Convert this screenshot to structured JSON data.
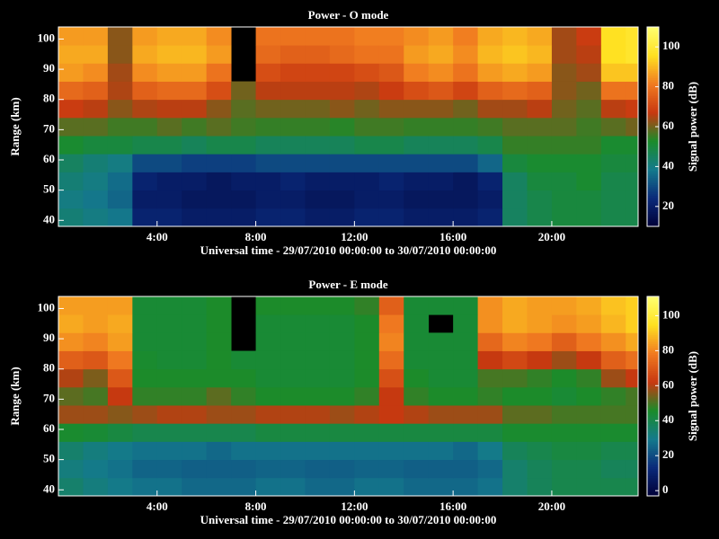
{
  "chart_data": [
    {
      "type": "heatmap",
      "title": "Power - O mode",
      "xlabel": "Universal time - 29/07/2010 00:00:00 to 30/07/2010 00:00:00",
      "ylabel": "Range (km)",
      "colorbar_label": "Signal power (dB)",
      "xbins": [
        0,
        1,
        2,
        3,
        4,
        5,
        6,
        7,
        8,
        9,
        10,
        11,
        12,
        13,
        14,
        15,
        16,
        17,
        18,
        19,
        20,
        21,
        22,
        23,
        23.5
      ],
      "ybins": [
        38,
        44,
        50,
        56,
        62,
        68,
        74,
        80,
        86,
        92,
        98,
        104
      ],
      "xlim": [
        0,
        23.5
      ],
      "ylim": [
        38,
        104
      ],
      "zlim": [
        10,
        110
      ],
      "xticks": [
        {
          "value": 4,
          "label": "4:00"
        },
        {
          "value": 8,
          "label": "8:00"
        },
        {
          "value": 12,
          "label": "12:00"
        },
        {
          "value": 16,
          "label": "16:00"
        },
        {
          "value": 20,
          "label": "20:00"
        }
      ],
      "yticks": [
        40,
        50,
        60,
        70,
        80,
        90,
        100
      ],
      "zticks": [
        20,
        40,
        60,
        80,
        100
      ],
      "colormap": [
        "#000038",
        "#0a2a7a",
        "#147a8c",
        "#1a8c2a",
        "#c83810",
        "#f07a20",
        "#ffe020",
        "#ffff70"
      ],
      "z": [
        [
          42,
          40,
          38,
          22,
          22,
          20,
          20,
          20,
          22,
          22,
          20,
          20,
          22,
          22,
          20,
          20,
          20,
          22,
          45,
          48,
          50,
          50,
          48,
          48
        ],
        [
          40,
          38,
          35,
          20,
          20,
          18,
          18,
          18,
          20,
          20,
          18,
          18,
          20,
          20,
          18,
          18,
          18,
          20,
          45,
          48,
          50,
          50,
          48,
          48
        ],
        [
          42,
          40,
          36,
          22,
          20,
          20,
          18,
          20,
          20,
          22,
          20,
          20,
          20,
          22,
          20,
          20,
          18,
          22,
          45,
          50,
          50,
          52,
          48,
          48
        ],
        [
          45,
          42,
          40,
          30,
          30,
          28,
          28,
          28,
          30,
          30,
          30,
          30,
          30,
          30,
          30,
          30,
          30,
          35,
          50,
          52,
          52,
          52,
          50,
          50
        ],
        [
          52,
          50,
          50,
          48,
          48,
          46,
          48,
          48,
          46,
          46,
          46,
          46,
          48,
          48,
          46,
          46,
          46,
          48,
          55,
          55,
          55,
          55,
          52,
          52
        ],
        [
          58,
          58,
          56,
          56,
          58,
          56,
          58,
          56,
          55,
          55,
          55,
          54,
          56,
          56,
          55,
          55,
          55,
          56,
          58,
          58,
          58,
          56,
          58,
          60
        ],
        [
          68,
          66,
          62,
          65,
          66,
          66,
          62,
          58,
          60,
          60,
          60,
          62,
          60,
          62,
          62,
          62,
          60,
          64,
          64,
          66,
          60,
          58,
          66,
          68
        ],
        [
          78,
          76,
          65,
          76,
          78,
          78,
          72,
          60,
          66,
          66,
          66,
          66,
          65,
          68,
          72,
          74,
          70,
          76,
          78,
          76,
          62,
          60,
          80,
          80
        ],
        [
          86,
          84,
          64,
          84,
          86,
          86,
          80,
          null,
          72,
          70,
          70,
          70,
          72,
          74,
          82,
          84,
          80,
          86,
          88,
          86,
          62,
          64,
          92,
          92
        ],
        [
          88,
          88,
          62,
          88,
          90,
          90,
          86,
          null,
          78,
          76,
          76,
          78,
          80,
          80,
          86,
          88,
          84,
          90,
          92,
          90,
          64,
          66,
          96,
          98
        ],
        [
          86,
          86,
          62,
          86,
          88,
          88,
          84,
          null,
          80,
          80,
          80,
          80,
          82,
          82,
          84,
          86,
          82,
          88,
          90,
          88,
          64,
          68,
          96,
          98
        ]
      ]
    },
    {
      "type": "heatmap",
      "title": "Power - E mode",
      "xlabel": "Universal time - 29/07/2010 00:00:00 to 30/07/2010 00:00:00",
      "ylabel": "Range (km)",
      "colorbar_label": "Signal power (dB)",
      "xbins": [
        0,
        1,
        2,
        3,
        4,
        5,
        6,
        7,
        8,
        9,
        10,
        11,
        12,
        13,
        14,
        15,
        16,
        17,
        18,
        19,
        20,
        21,
        22,
        23,
        23.5
      ],
      "ybins": [
        38,
        44,
        50,
        56,
        62,
        68,
        74,
        80,
        86,
        92,
        98,
        104
      ],
      "xlim": [
        0,
        23.5
      ],
      "ylim": [
        38,
        104
      ],
      "zlim": [
        -3,
        111
      ],
      "xticks": [
        {
          "value": 4,
          "label": "4:00"
        },
        {
          "value": 8,
          "label": "8:00"
        },
        {
          "value": 12,
          "label": "12:00"
        },
        {
          "value": 16,
          "label": "16:00"
        },
        {
          "value": 20,
          "label": "20:00"
        }
      ],
      "yticks": [
        40,
        50,
        60,
        70,
        80,
        90,
        100
      ],
      "zticks": [
        0,
        20,
        40,
        60,
        80,
        100
      ],
      "colormap": [
        "#000038",
        "#0a2a7a",
        "#147a8c",
        "#1a8c2a",
        "#c83810",
        "#f07a20",
        "#ffe020",
        "#ffff70"
      ],
      "z": [
        [
          35,
          32,
          30,
          28,
          28,
          26,
          26,
          26,
          28,
          28,
          26,
          26,
          28,
          28,
          26,
          26,
          26,
          28,
          35,
          38,
          40,
          40,
          40,
          40
        ],
        [
          32,
          30,
          28,
          25,
          25,
          24,
          24,
          24,
          25,
          25,
          24,
          24,
          25,
          25,
          24,
          24,
          24,
          26,
          35,
          38,
          40,
          40,
          38,
          38
        ],
        [
          35,
          32,
          30,
          28,
          28,
          28,
          26,
          28,
          28,
          28,
          28,
          28,
          28,
          28,
          28,
          28,
          26,
          30,
          38,
          40,
          42,
          42,
          40,
          40
        ],
        [
          45,
          44,
          42,
          40,
          40,
          40,
          40,
          40,
          42,
          42,
          42,
          42,
          42,
          42,
          42,
          42,
          42,
          42,
          45,
          45,
          45,
          45,
          45,
          45
        ],
        [
          58,
          58,
          56,
          58,
          60,
          60,
          58,
          58,
          60,
          60,
          60,
          58,
          60,
          62,
          60,
          58,
          58,
          58,
          52,
          52,
          50,
          50,
          50,
          50
        ],
        [
          52,
          50,
          62,
          48,
          48,
          48,
          52,
          48,
          46,
          46,
          46,
          46,
          48,
          62,
          48,
          46,
          46,
          48,
          46,
          46,
          44,
          46,
          48,
          50
        ],
        [
          60,
          55,
          70,
          46,
          46,
          46,
          46,
          46,
          44,
          44,
          44,
          44,
          46,
          68,
          46,
          44,
          44,
          50,
          50,
          48,
          46,
          48,
          58,
          62
        ],
        [
          72,
          70,
          78,
          45,
          44,
          44,
          46,
          44,
          44,
          44,
          44,
          44,
          46,
          75,
          44,
          44,
          44,
          62,
          66,
          62,
          58,
          62,
          72,
          76
        ],
        [
          82,
          80,
          84,
          44,
          44,
          44,
          46,
          null,
          44,
          44,
          44,
          44,
          46,
          80,
          44,
          44,
          44,
          74,
          80,
          78,
          72,
          78,
          82,
          86
        ],
        [
          86,
          84,
          86,
          44,
          44,
          44,
          46,
          null,
          44,
          44,
          44,
          44,
          46,
          78,
          44,
          null,
          44,
          82,
          86,
          84,
          82,
          84,
          88,
          92
        ],
        [
          84,
          84,
          84,
          44,
          44,
          44,
          46,
          null,
          46,
          46,
          46,
          46,
          48,
          72,
          44,
          44,
          44,
          82,
          86,
          84,
          84,
          86,
          90,
          92
        ]
      ]
    }
  ]
}
